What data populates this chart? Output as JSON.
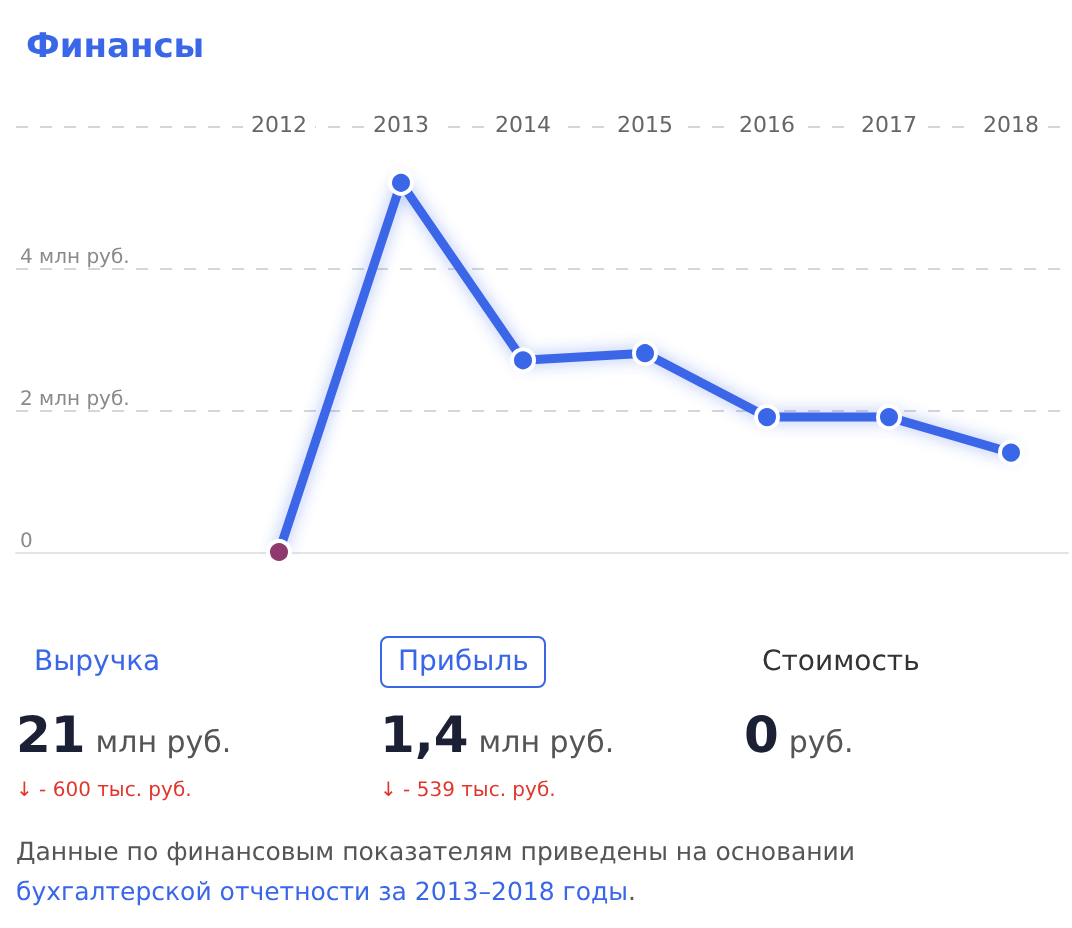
{
  "chart_data": [
    {
      "type": "line",
      "title": "Финансы",
      "categories": [
        "2012",
        "2013",
        "2014",
        "2015",
        "2016",
        "2017",
        "2018"
      ],
      "values": [
        0,
        5.2,
        2.7,
        2.8,
        1.9,
        1.9,
        1.4
      ],
      "color": "#3a66e8",
      "colors": [
        "#8e3a6c",
        "#3a66e8",
        "#3a66e8",
        "#3a66e8",
        "#3a66e8",
        "#3a66e8",
        "#3a66e8"
      ],
      "ylim": [
        0,
        6
      ],
      "yticks": [
        0,
        {
          "value": 2,
          "label": "2 млн руб."
        },
        {
          "value": 4,
          "label": "4 млн руб."
        },
        {
          "value": 6,
          "label": null
        }
      ],
      "grid": "y",
      "marker": "circle",
      "line_style": "solid"
    },
    {
      "type": "other",
      "annotations": [
        "Выручка",
        "21",
        "млн руб.",
        "↓ - 600 тыс. руб.",
        "Прибыль",
        "1,4",
        "млн руб.",
        "↓ - 539 тыс. руб.",
        "Стоимость",
        "0",
        "руб.",
        "Данные по финансовым показателям приведены на основании",
        "бухгалтерской отчетности за 2013–2018 годы",
        "."
      ]
    }
  ]
}
